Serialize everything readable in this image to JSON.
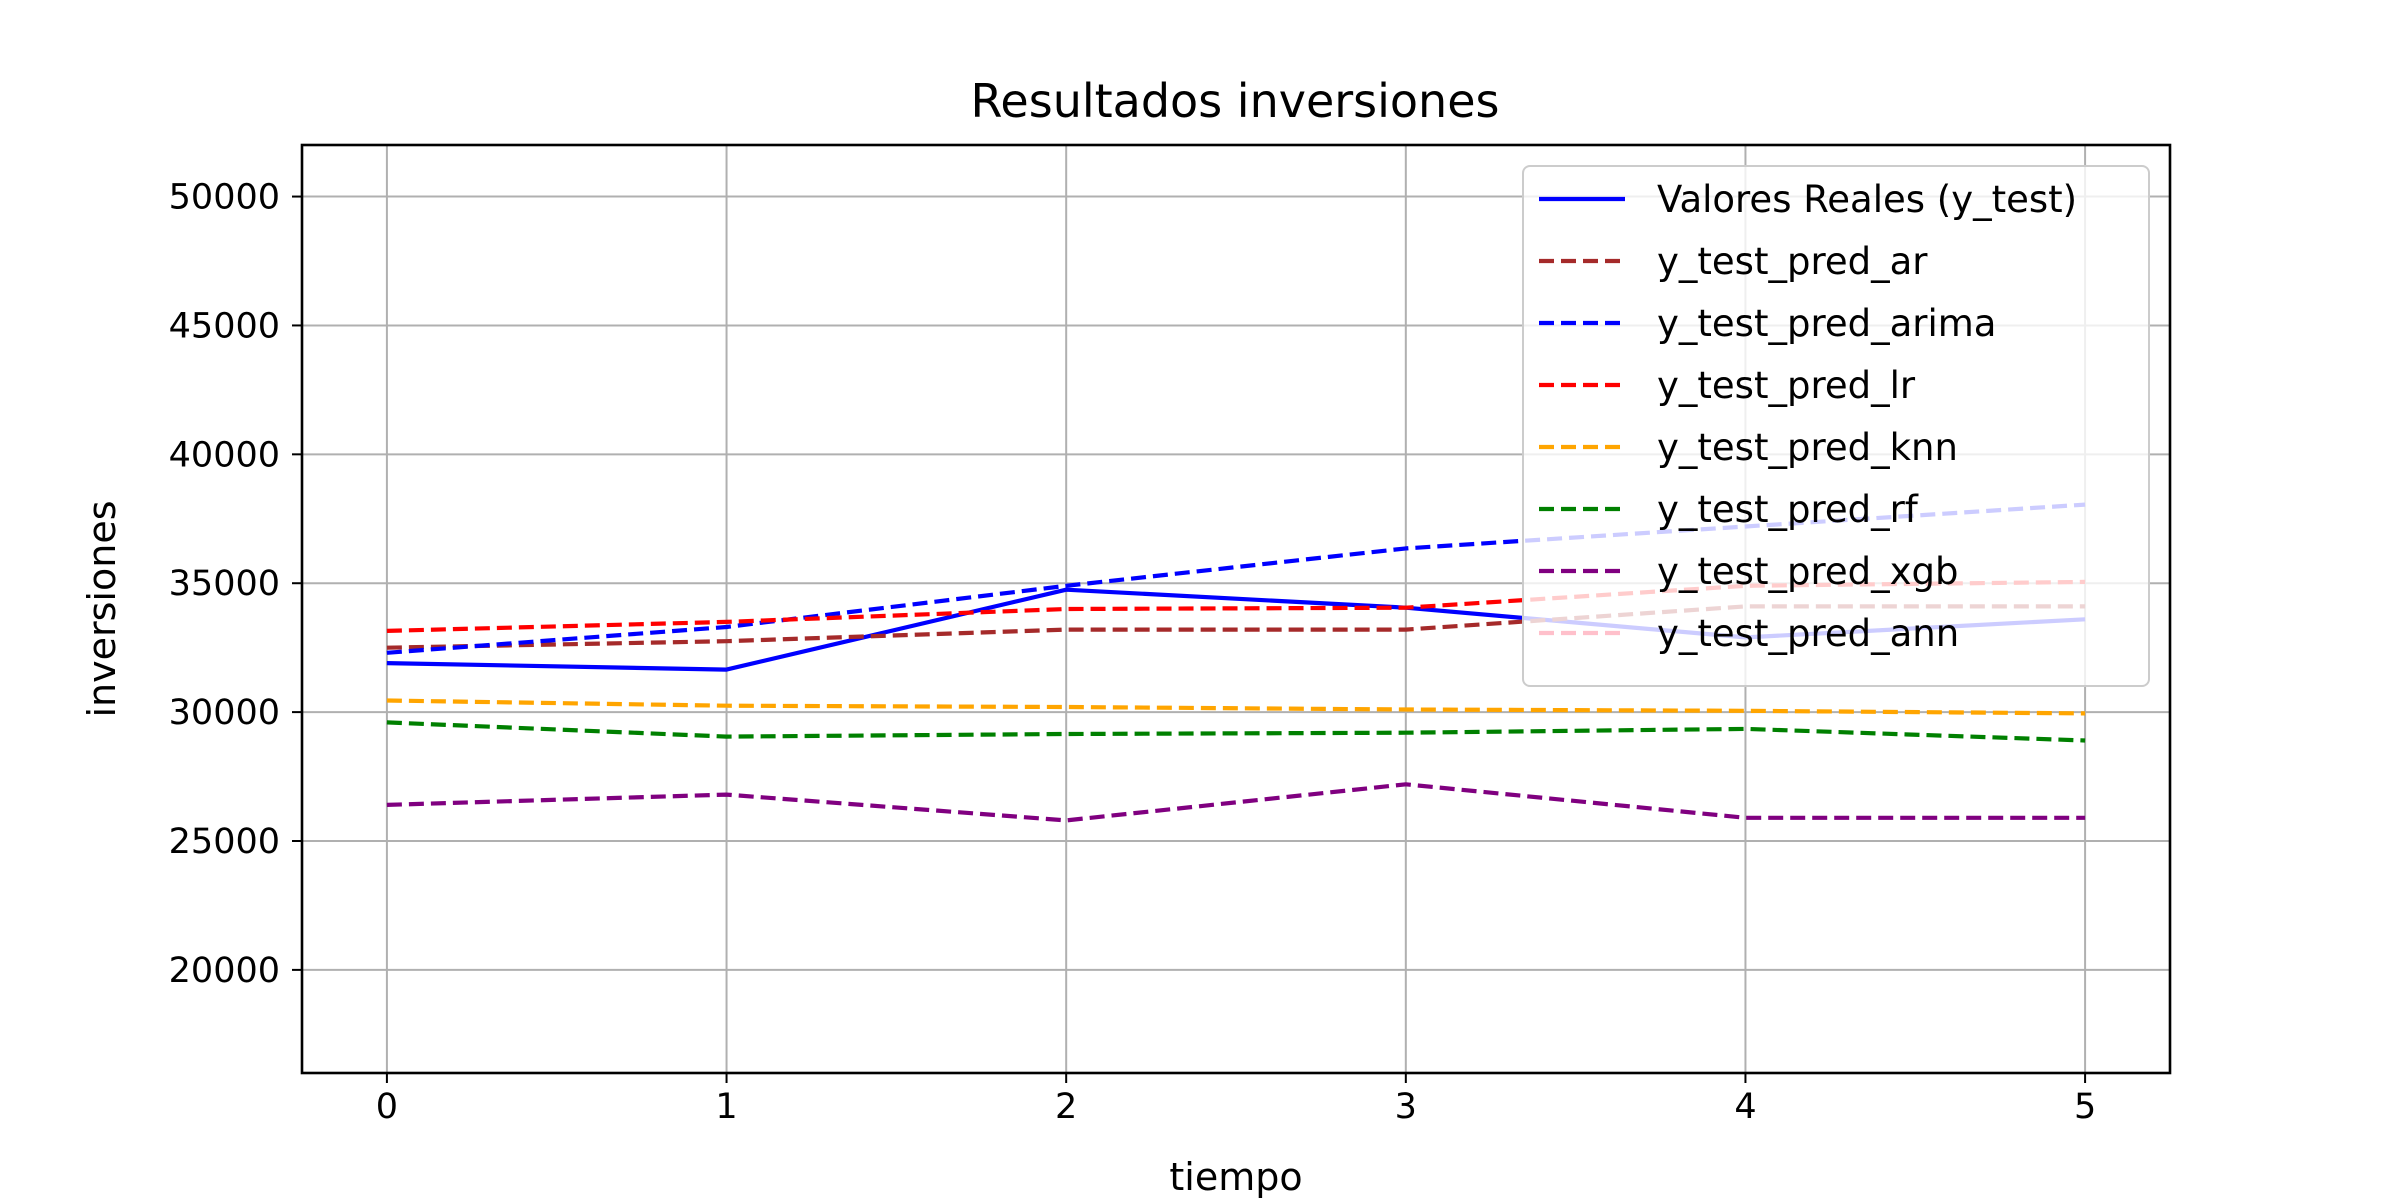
{
  "chart_data": {
    "type": "line",
    "title": "Resultados inversiones",
    "xlabel": "tiempo",
    "ylabel": "inversiones",
    "x": [
      0,
      1,
      2,
      3,
      4,
      5
    ],
    "xticks": [
      0,
      1,
      2,
      3,
      4,
      5
    ],
    "yticks": [
      20000,
      25000,
      30000,
      35000,
      40000,
      45000,
      50000
    ],
    "xlim": [
      -0.25,
      5.25
    ],
    "ylim": [
      16000,
      52000
    ],
    "grid": true,
    "legend_position": "top-right",
    "series": [
      {
        "name": "Valores Reales (y_test)",
        "color": "#0000ff",
        "style": "solid",
        "values": [
          31900,
          31650,
          34750,
          34050,
          32900,
          33600
        ]
      },
      {
        "name": "y_test_pred_ar",
        "color": "#a52a2a",
        "style": "dashed",
        "values": [
          32500,
          32750,
          33200,
          33200,
          34100,
          34100
        ]
      },
      {
        "name": "y_test_pred_arima",
        "color": "#0000ff",
        "style": "dashed",
        "values": [
          32300,
          33300,
          34900,
          36350,
          37200,
          38050
        ]
      },
      {
        "name": "y_test_pred_lr",
        "color": "#ff0000",
        "style": "dashed",
        "values": [
          33150,
          33500,
          34000,
          34050,
          34900,
          35050
        ]
      },
      {
        "name": "y_test_pred_knn",
        "color": "#ffa500",
        "style": "dashed",
        "values": [
          30450,
          30250,
          30200,
          30100,
          30050,
          29950
        ]
      },
      {
        "name": "y_test_pred_rf",
        "color": "#008000",
        "style": "dashed",
        "values": [
          29600,
          29050,
          29150,
          29200,
          29350,
          28900
        ]
      },
      {
        "name": "y_test_pred_xgb",
        "color": "#800080",
        "style": "dashed",
        "values": [
          26400,
          26800,
          25800,
          27200,
          25900,
          25900
        ]
      },
      {
        "name": "y_test_pred_ann",
        "color": "#ffc0cb",
        "style": "dashed",
        "values": [
          null,
          null,
          null,
          null,
          null,
          null
        ]
      }
    ]
  }
}
